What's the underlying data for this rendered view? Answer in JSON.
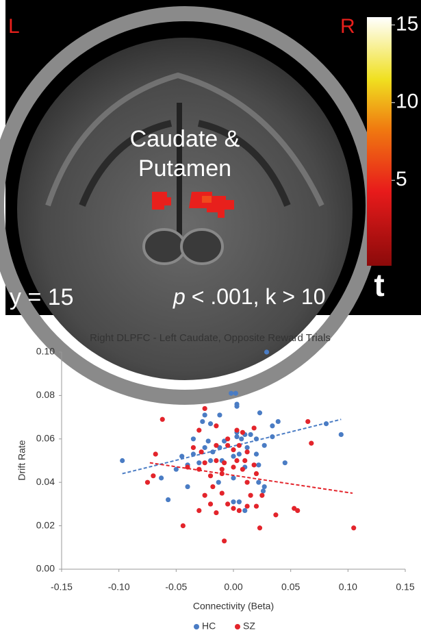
{
  "image_panel": {
    "hemisphere_labels": [
      "L",
      "R"
    ],
    "region_label": [
      "Caudate &",
      "Putamen"
    ],
    "slice": "y = 15",
    "threshold": {
      "symbol": "p",
      "text": "< .001, k > 10"
    },
    "colorbar": {
      "label": "t",
      "lim": [
        -0.5,
        15.5
      ],
      "ticks": [
        5,
        10,
        15
      ]
    }
  },
  "chart_data": {
    "type": "scatter",
    "title": "Right DLPFC - Left Caudate, Opposite Reward Trials",
    "x_label": "Connectivity (Beta)",
    "y_label": "Drift Rate",
    "xlim": [
      -0.15,
      0.15
    ],
    "xticks": [
      -0.15,
      {
        "value": -0.1,
        "label": "-0.10"
      },
      -0.05,
      {
        "value": 0,
        "label": "0.00"
      },
      0.05,
      {
        "value": 0.1,
        "label": "0.10"
      },
      0.15
    ],
    "ylim": [
      0,
      0.1
    ],
    "yticks": [
      {
        "value": 0,
        "label": "0.00"
      },
      0.02,
      0.04,
      0.06,
      0.08,
      {
        "value": 0.1,
        "label": "0.10"
      }
    ],
    "legend": "bottom",
    "series": [
      {
        "name": "HC",
        "color": "#4a7cc4",
        "x": [
          -0.097,
          0.029,
          -0.002,
          0.002,
          0.003,
          0.003,
          -0.012,
          -0.025,
          0.023,
          -0.027,
          -0.02,
          0.039,
          0.034,
          0.081,
          0.094,
          -0.035,
          -0.022,
          -0.008,
          0.003,
          0.01,
          0.015,
          0.02,
          0.034,
          -0.025,
          -0.018,
          -0.012,
          0.003,
          0.007,
          -0.045,
          -0.035,
          -0.03,
          -0.01,
          0.005,
          0.012,
          0.02,
          0.027,
          -0.05,
          -0.04,
          -0.02,
          0.0,
          0.01,
          0.022,
          -0.063,
          -0.04,
          -0.013,
          0.0,
          0.027,
          0.022,
          0.026,
          -0.057,
          0.005,
          0.01,
          0.0,
          0.045
        ],
        "y": [
          0.05,
          0.1,
          0.081,
          0.081,
          0.076,
          0.075,
          0.071,
          0.071,
          0.072,
          0.068,
          0.067,
          0.068,
          0.066,
          0.067,
          0.062,
          0.06,
          0.059,
          0.059,
          0.063,
          0.062,
          0.062,
          0.06,
          0.061,
          0.056,
          0.054,
          0.056,
          0.061,
          0.06,
          0.052,
          0.053,
          0.049,
          0.05,
          0.053,
          0.056,
          0.053,
          0.057,
          0.046,
          0.048,
          0.05,
          0.052,
          0.047,
          0.048,
          0.042,
          0.038,
          0.04,
          0.042,
          0.038,
          0.04,
          0.036,
          0.032,
          0.031,
          0.027,
          0.031,
          0.049
        ],
        "trendline": {
          "x": [
            -0.097,
            0.094
          ],
          "y": [
            0.044,
            0.069
          ]
        }
      },
      {
        "name": "SZ",
        "color": "#e3242b",
        "x": [
          -0.062,
          -0.025,
          -0.015,
          0.065,
          0.068,
          -0.03,
          -0.005,
          0.003,
          0.008,
          0.018,
          -0.068,
          -0.075,
          -0.07,
          -0.04,
          -0.035,
          -0.028,
          -0.015,
          -0.005,
          0.0,
          0.005,
          0.012,
          -0.025,
          -0.015,
          -0.008,
          0.003,
          0.01,
          0.018,
          -0.03,
          -0.01,
          0.0,
          0.008,
          -0.02,
          -0.01,
          0.012,
          0.02,
          -0.025,
          -0.01,
          0.015,
          0.025,
          -0.03,
          -0.02,
          -0.015,
          -0.005,
          0.0,
          0.005,
          0.012,
          0.02,
          0.037,
          0.053,
          0.056,
          -0.044,
          0.023,
          0.105,
          -0.008,
          -0.018
        ],
        "y": [
          0.069,
          0.074,
          0.066,
          0.068,
          0.058,
          0.064,
          0.06,
          0.064,
          0.063,
          0.065,
          0.053,
          0.04,
          0.043,
          0.047,
          0.056,
          0.054,
          0.057,
          0.057,
          0.055,
          0.057,
          0.054,
          0.049,
          0.05,
          0.049,
          0.05,
          0.05,
          0.048,
          0.046,
          0.046,
          0.047,
          0.046,
          0.043,
          0.044,
          0.04,
          0.044,
          0.034,
          0.035,
          0.034,
          0.034,
          0.027,
          0.03,
          0.026,
          0.03,
          0.028,
          0.027,
          0.029,
          0.029,
          0.025,
          0.028,
          0.027,
          0.02,
          0.019,
          0.019,
          0.013,
          0.038
        ],
        "trendline": {
          "x": [
            -0.073,
            0.104
          ],
          "y": [
            0.049,
            0.035
          ]
        }
      }
    ]
  }
}
